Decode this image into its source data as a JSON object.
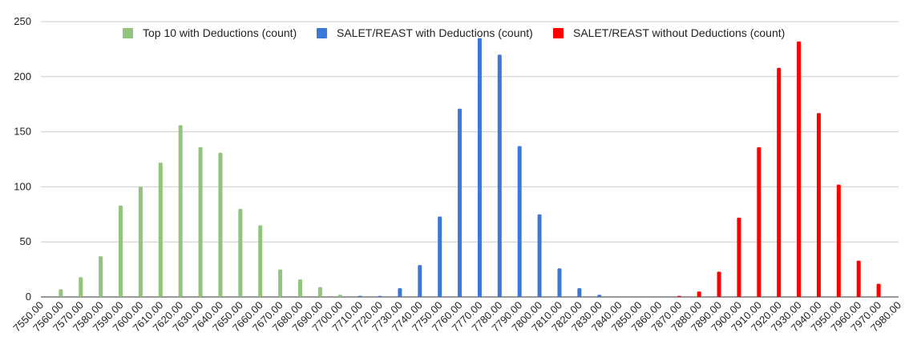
{
  "chart_data": {
    "type": "bar",
    "title": "",
    "xlabel": "",
    "ylabel": "",
    "ylim": [
      0,
      250
    ],
    "yticks": [
      0,
      50,
      100,
      150,
      200,
      250
    ],
    "grid": "horizontal",
    "legend_position": "top",
    "categories": [
      "7550.00",
      "7560.00",
      "7570.00",
      "7580.00",
      "7590.00",
      "7600.00",
      "7610.00",
      "7620.00",
      "7630.00",
      "7640.00",
      "7650.00",
      "7660.00",
      "7670.00",
      "7680.00",
      "7690.00",
      "7700.00",
      "7710.00",
      "7720.00",
      "7730.00",
      "7740.00",
      "7750.00",
      "7760.00",
      "7770.00",
      "7780.00",
      "7790.00",
      "7800.00",
      "7810.00",
      "7820.00",
      "7830.00",
      "7840.00",
      "7850.00",
      "7860.00",
      "7870.00",
      "7880.00",
      "7890.00",
      "7900.00",
      "7910.00",
      "7920.00",
      "7930.00",
      "7940.00",
      "7950.00",
      "7960.00",
      "7970.00",
      "7980.00"
    ],
    "series": [
      {
        "name": "Top 10 with Deductions (count)",
        "color": "#93c47d",
        "values": [
          0,
          7,
          18,
          37,
          83,
          100,
          122,
          156,
          136,
          131,
          80,
          65,
          25,
          16,
          9,
          2,
          1,
          0,
          0,
          0,
          0,
          0,
          0,
          0,
          0,
          0,
          0,
          0,
          0,
          0,
          0,
          0,
          0,
          0,
          0,
          0,
          0,
          0,
          0,
          0,
          0,
          0,
          0,
          0
        ]
      },
      {
        "name": "SALET/REAST with Deductions (count)",
        "color": "#3c78d8",
        "values": [
          0,
          0,
          0,
          0,
          0,
          0,
          0,
          0,
          0,
          0,
          0,
          0,
          0,
          0,
          0,
          0,
          1,
          1,
          8,
          29,
          73,
          171,
          235,
          220,
          137,
          75,
          26,
          8,
          2,
          0,
          0,
          0,
          0,
          0,
          0,
          0,
          0,
          0,
          0,
          0,
          0,
          0,
          0,
          0
        ]
      },
      {
        "name": "SALET/REAST without Deductions (count)",
        "color": "#ff0000",
        "values": [
          0,
          0,
          0,
          0,
          0,
          0,
          0,
          0,
          0,
          0,
          0,
          0,
          0,
          0,
          0,
          0,
          0,
          0,
          0,
          0,
          0,
          0,
          0,
          0,
          0,
          0,
          0,
          0,
          0,
          0,
          0,
          0,
          1,
          5,
          23,
          72,
          136,
          208,
          232,
          167,
          102,
          33,
          12,
          0
        ]
      }
    ]
  }
}
